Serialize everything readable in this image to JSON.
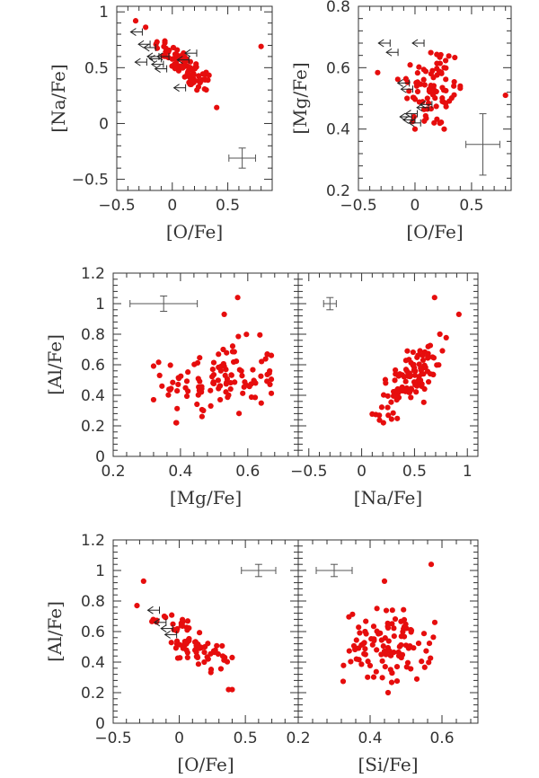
{
  "chart_data": [
    {
      "id": "p1",
      "type": "scatter",
      "xlabel": "[O/Fe]",
      "ylabel": "[Na/Fe]",
      "xlim": [
        -0.5,
        0.9
      ],
      "ylim": [
        -0.6,
        1.05
      ],
      "xticks": [
        -0.5,
        0,
        0.5
      ],
      "xtick_labels": [
        "−0.5",
        "0",
        "0.5"
      ],
      "yticks": [
        -0.5,
        0,
        0.5,
        1
      ],
      "ytick_labels": [
        "−0.5",
        "0",
        "0.5",
        "1"
      ],
      "upper_limits": [
        [
          -0.27,
          0.82
        ],
        [
          -0.23,
          0.55
        ],
        [
          -0.2,
          0.71
        ],
        [
          -0.15,
          0.68
        ],
        [
          -0.12,
          0.6
        ],
        [
          -0.1,
          0.58
        ],
        [
          -0.08,
          0.53
        ],
        [
          -0.05,
          0.49
        ],
        [
          -0.03,
          0.6
        ],
        [
          0.22,
          0.63
        ],
        [
          0.15,
          0.57
        ],
        [
          0.12,
          0.32
        ]
      ],
      "error_bar": {
        "x": 0.63,
        "y": -0.31,
        "xerr": 0.12,
        "yerr": 0.09
      }
    },
    {
      "id": "p2",
      "type": "scatter",
      "xlabel": "[O/Fe]",
      "ylabel": "[Mg/Fe]",
      "xlim": [
        -0.5,
        0.85
      ],
      "ylim": [
        0.2,
        0.8
      ],
      "xticks": [
        -0.5,
        0,
        0.5
      ],
      "xtick_labels": [
        "−0.5",
        "0",
        "0.5"
      ],
      "yticks": [
        0.2,
        0.4,
        0.6,
        0.8
      ],
      "ytick_labels": [
        "0.2",
        "0.4",
        "0.6",
        "0.8"
      ],
      "upper_limits": [
        [
          -0.22,
          0.68
        ],
        [
          -0.15,
          0.65
        ],
        [
          0.08,
          0.68
        ],
        [
          -0.05,
          0.55
        ],
        [
          -0.02,
          0.53
        ],
        [
          0.02,
          0.45
        ],
        [
          -0.03,
          0.44
        ],
        [
          0.0,
          0.43
        ],
        [
          0.05,
          0.42
        ],
        [
          0.12,
          0.47
        ],
        [
          0.15,
          0.48
        ]
      ],
      "error_bar": {
        "x": 0.6,
        "y": 0.35,
        "xerr": 0.15,
        "yerr": 0.1
      }
    },
    {
      "id": "p3",
      "type": "scatter",
      "xlabel": "[Mg/Fe]",
      "ylabel": "[Al/Fe]",
      "xlim": [
        0.2,
        0.75
      ],
      "ylim": [
        0,
        1.2
      ],
      "xticks": [
        0.2,
        0.4,
        0.6
      ],
      "xtick_labels": [
        "0.2",
        "0.4",
        "0.6"
      ],
      "yticks": [
        0,
        0.2,
        0.4,
        0.6,
        0.8,
        1,
        1.2
      ],
      "ytick_labels": [
        "0",
        "0.2",
        "0.4",
        "0.6",
        "0.8",
        "1",
        "1.2"
      ],
      "error_bar": {
        "x": 0.35,
        "y": 1.0,
        "xerr": 0.1,
        "yerr": 0.05
      }
    },
    {
      "id": "p4",
      "type": "scatter",
      "xlabel": "[Na/Fe]",
      "ylabel": "",
      "xlim": [
        -0.6,
        1.1
      ],
      "ylim": [
        0,
        1.2
      ],
      "xticks": [
        -0.5,
        0,
        0.5,
        1
      ],
      "xtick_labels": [
        "−0.5",
        "0",
        "0.5",
        "1"
      ],
      "yticks": [
        0,
        0.2,
        0.4,
        0.6,
        0.8,
        1,
        1.2
      ],
      "ytick_labels": [],
      "error_bar": {
        "x": -0.3,
        "y": 1.0,
        "xerr": 0.06,
        "yerr": 0.04
      }
    },
    {
      "id": "p5",
      "type": "scatter",
      "xlabel": "[O/Fe]",
      "ylabel": "[Al/Fe]",
      "xlim": [
        -0.5,
        0.9
      ],
      "ylim": [
        0,
        1.2
      ],
      "xticks": [
        -0.5,
        0,
        0.5
      ],
      "xtick_labels": [
        "−0.5",
        "0",
        "0.5"
      ],
      "yticks": [
        0,
        0.2,
        0.4,
        0.6,
        0.8,
        1,
        1.2
      ],
      "ytick_labels": [
        "0",
        "0.2",
        "0.4",
        "0.6",
        "0.8",
        "1",
        "1.2"
      ],
      "upper_limits": [
        [
          -0.15,
          0.74
        ],
        [
          -0.1,
          0.66
        ],
        [
          -0.05,
          0.62
        ],
        [
          -0.02,
          0.58
        ]
      ],
      "error_bar": {
        "x": 0.6,
        "y": 1.0,
        "xerr": 0.13,
        "yerr": 0.04
      }
    },
    {
      "id": "p6",
      "type": "scatter",
      "xlabel": "[Si/Fe]",
      "ylabel": "",
      "xlim": [
        0.2,
        0.7
      ],
      "ylim": [
        0,
        1.2
      ],
      "xticks": [
        0.2,
        0.4,
        0.6
      ],
      "xtick_labels": [
        "0.2",
        "0.4",
        "0.6"
      ],
      "yticks": [
        0,
        0.2,
        0.4,
        0.6,
        0.8,
        1,
        1.2
      ],
      "ytick_labels": [],
      "error_bar": {
        "x": 0.3,
        "y": 1.0,
        "xerr": 0.05,
        "yerr": 0.04
      }
    }
  ]
}
